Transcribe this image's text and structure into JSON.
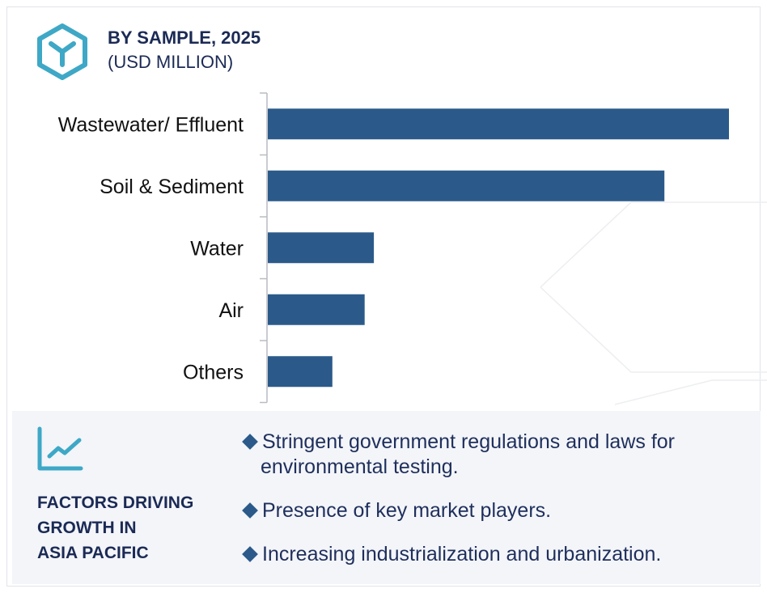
{
  "header": {
    "title": "BY SAMPLE, 2025",
    "subtitle": "(USD MILLION)",
    "icon": "hexagon-cube-icon"
  },
  "colors": {
    "bar": "#2b5a8a",
    "accent": "#3ea8c6",
    "text": "#1b2a55",
    "panel": "#f3f5f9"
  },
  "chart_data": {
    "type": "bar",
    "orientation": "horizontal",
    "categories": [
      "Wastewater/ Effluent",
      "Soil & Sediment",
      "Water",
      "Air",
      "Others"
    ],
    "values": [
      100,
      86,
      23,
      21,
      14
    ],
    "value_units": "relative (percent of largest bar; no value axis printed)",
    "title": "BY SAMPLE, 2025",
    "subtitle": "(USD MILLION)",
    "grid": false
  },
  "factors": {
    "icon": "line-chart-icon",
    "title_lines": [
      "FACTORS DRIVING",
      "GROWTH IN",
      "ASIA PACIFIC"
    ],
    "items": [
      {
        "line1": "Stringent government regulations and laws for",
        "line2": "environmental testing."
      },
      {
        "line1": "Presence of key market players.",
        "line2": ""
      },
      {
        "line1": "Increasing industrialization and urbanization.",
        "line2": ""
      }
    ]
  }
}
